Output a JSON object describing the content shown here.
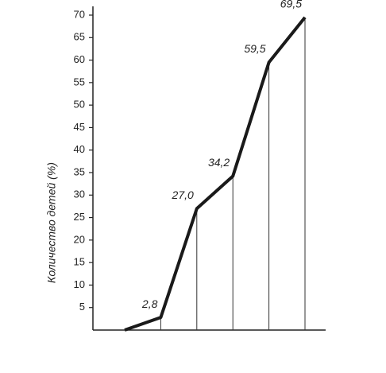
{
  "chart_data": {
    "type": "line",
    "y_label": "Количество детей (%)",
    "categories": [
      null,
      null,
      null,
      null,
      null,
      null
    ],
    "values": [
      0,
      2.8,
      27.0,
      34.2,
      59.5,
      69.5
    ],
    "value_labels": [
      null,
      "2,8",
      "27,0",
      "34,2",
      "59,5",
      "69,5"
    ],
    "color": "#1a1a1a",
    "ylim": [
      0,
      70
    ],
    "yticks": [
      5,
      10,
      15,
      20,
      25,
      30,
      35,
      40,
      45,
      50,
      55,
      60,
      65,
      70
    ],
    "drop_lines": true
  }
}
